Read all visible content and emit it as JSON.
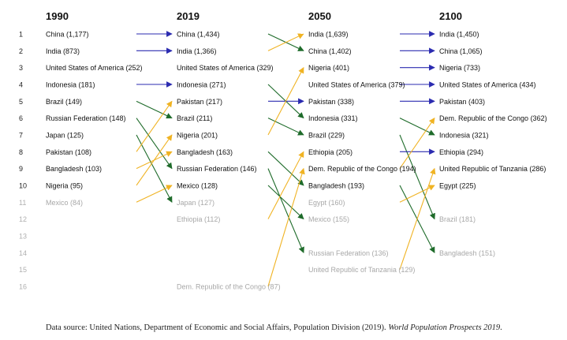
{
  "chart_data": {
    "type": "bump",
    "years": [
      "1990",
      "2019",
      "2050",
      "2100"
    ],
    "ranks": [
      "1",
      "2",
      "3",
      "4",
      "5",
      "6",
      "7",
      "8",
      "9",
      "10",
      "11",
      "12",
      "13",
      "14",
      "15",
      "16"
    ],
    "columns": [
      [
        {
          "rank": 1,
          "label": "China (1,177)",
          "top10": true
        },
        {
          "rank": 2,
          "label": "India (873)",
          "top10": true
        },
        {
          "rank": 3,
          "label": "United States of America (252)",
          "top10": true
        },
        {
          "rank": 4,
          "label": "Indonesia (181)",
          "top10": true
        },
        {
          "rank": 5,
          "label": "Brazil (149)",
          "top10": true
        },
        {
          "rank": 6,
          "label": "Russian Federation (148)",
          "top10": true
        },
        {
          "rank": 7,
          "label": "Japan (125)",
          "top10": true
        },
        {
          "rank": 8,
          "label": "Pakistan (108)",
          "top10": true
        },
        {
          "rank": 9,
          "label": "Bangladesh (103)",
          "top10": true
        },
        {
          "rank": 10,
          "label": "Nigeria (95)",
          "top10": true
        },
        {
          "rank": 11,
          "label": "Mexico (84)",
          "top10": false
        }
      ],
      [
        {
          "rank": 1,
          "label": "China (1,434)",
          "top10": true
        },
        {
          "rank": 2,
          "label": "India (1,366)",
          "top10": true
        },
        {
          "rank": 3,
          "label": "United States of America (329)",
          "top10": true
        },
        {
          "rank": 4,
          "label": "Indonesia (271)",
          "top10": true
        },
        {
          "rank": 5,
          "label": "Pakistan (217)",
          "top10": true
        },
        {
          "rank": 6,
          "label": "Brazil (211)",
          "top10": true
        },
        {
          "rank": 7,
          "label": "Nigeria (201)",
          "top10": true
        },
        {
          "rank": 8,
          "label": "Bangladesh (163)",
          "top10": true
        },
        {
          "rank": 9,
          "label": "Russian Federation (146)",
          "top10": true
        },
        {
          "rank": 10,
          "label": "Mexico (128)",
          "top10": true
        },
        {
          "rank": 11,
          "label": "Japan (127)",
          "top10": false
        },
        {
          "rank": 12,
          "label": "Ethiopia (112)",
          "top10": false
        },
        {
          "rank": 16,
          "label": "Dem. Republic of the Congo (87)",
          "top10": false
        }
      ],
      [
        {
          "rank": 1,
          "label": "India (1,639)",
          "top10": true
        },
        {
          "rank": 2,
          "label": "China (1,402)",
          "top10": true
        },
        {
          "rank": 3,
          "label": "Nigeria (401)",
          "top10": true
        },
        {
          "rank": 4,
          "label": "United States of America (379)",
          "top10": true
        },
        {
          "rank": 5,
          "label": "Pakistan (338)",
          "top10": true
        },
        {
          "rank": 6,
          "label": "Indonesia (331)",
          "top10": true
        },
        {
          "rank": 7,
          "label": "Brazil (229)",
          "top10": true
        },
        {
          "rank": 8,
          "label": "Ethiopia (205)",
          "top10": true
        },
        {
          "rank": 9,
          "label": "Dem. Republic of the Congo (194)",
          "top10": true
        },
        {
          "rank": 10,
          "label": "Bangladesh (193)",
          "top10": true
        },
        {
          "rank": 11,
          "label": "Egypt (160)",
          "top10": false
        },
        {
          "rank": 12,
          "label": "Mexico (155)",
          "top10": false
        },
        {
          "rank": 14,
          "label": "Russian Federation (136)",
          "top10": false
        },
        {
          "rank": 15,
          "label": "United Republic of Tanzania (129)",
          "top10": false
        }
      ],
      [
        {
          "rank": 1,
          "label": "India (1,450)",
          "top10": true
        },
        {
          "rank": 2,
          "label": "China (1,065)",
          "top10": true
        },
        {
          "rank": 3,
          "label": "Nigeria (733)",
          "top10": true
        },
        {
          "rank": 4,
          "label": "United States of America (434)",
          "top10": true
        },
        {
          "rank": 5,
          "label": "Pakistan (403)",
          "top10": true
        },
        {
          "rank": 6,
          "label": "Dem. Republic of the Congo (362)",
          "top10": true
        },
        {
          "rank": 7,
          "label": "Indonesia (321)",
          "top10": true
        },
        {
          "rank": 8,
          "label": "Ethiopia (294)",
          "top10": true
        },
        {
          "rank": 9,
          "label": "United Republic of Tanzania (286)",
          "top10": true
        },
        {
          "rank": 10,
          "label": "Egypt (225)",
          "top10": true
        },
        {
          "rank": 12,
          "label": "Brazil (181)",
          "top10": false
        },
        {
          "rank": 14,
          "label": "Bangladesh (151)",
          "top10": false
        }
      ]
    ],
    "arrows": [
      {
        "from_col": 0,
        "from_rank": 1,
        "to_rank": 1,
        "trend": "same"
      },
      {
        "from_col": 0,
        "from_rank": 2,
        "to_rank": 2,
        "trend": "same"
      },
      {
        "from_col": 0,
        "from_rank": 4,
        "to_rank": 4,
        "trend": "same"
      },
      {
        "from_col": 0,
        "from_rank": 5,
        "to_rank": 6,
        "trend": "down"
      },
      {
        "from_col": 0,
        "from_rank": 6,
        "to_rank": 9,
        "trend": "down"
      },
      {
        "from_col": 0,
        "from_rank": 7,
        "to_rank": 11,
        "trend": "down"
      },
      {
        "from_col": 0,
        "from_rank": 8,
        "to_rank": 5,
        "trend": "up"
      },
      {
        "from_col": 0,
        "from_rank": 9,
        "to_rank": 8,
        "trend": "up"
      },
      {
        "from_col": 0,
        "from_rank": 10,
        "to_rank": 7,
        "trend": "up"
      },
      {
        "from_col": 0,
        "from_rank": 11,
        "to_rank": 10,
        "trend": "up"
      },
      {
        "from_col": 1,
        "from_rank": 1,
        "to_rank": 2,
        "trend": "down"
      },
      {
        "from_col": 1,
        "from_rank": 2,
        "to_rank": 1,
        "trend": "up"
      },
      {
        "from_col": 1,
        "from_rank": 4,
        "to_rank": 6,
        "trend": "down"
      },
      {
        "from_col": 1,
        "from_rank": 5,
        "to_rank": 5,
        "trend": "same"
      },
      {
        "from_col": 1,
        "from_rank": 6,
        "to_rank": 7,
        "trend": "down"
      },
      {
        "from_col": 1,
        "from_rank": 7,
        "to_rank": 3,
        "trend": "up"
      },
      {
        "from_col": 1,
        "from_rank": 8,
        "to_rank": 10,
        "trend": "down"
      },
      {
        "from_col": 1,
        "from_rank": 9,
        "to_rank": 14,
        "trend": "down"
      },
      {
        "from_col": 1,
        "from_rank": 10,
        "to_rank": 12,
        "trend": "down"
      },
      {
        "from_col": 1,
        "from_rank": 12,
        "to_rank": 8,
        "trend": "up"
      },
      {
        "from_col": 1,
        "from_rank": 16,
        "to_rank": 9,
        "trend": "up"
      },
      {
        "from_col": 2,
        "from_rank": 1,
        "to_rank": 1,
        "trend": "same"
      },
      {
        "from_col": 2,
        "from_rank": 2,
        "to_rank": 2,
        "trend": "same"
      },
      {
        "from_col": 2,
        "from_rank": 3,
        "to_rank": 3,
        "trend": "same"
      },
      {
        "from_col": 2,
        "from_rank": 4,
        "to_rank": 4,
        "trend": "same"
      },
      {
        "from_col": 2,
        "from_rank": 5,
        "to_rank": 5,
        "trend": "same"
      },
      {
        "from_col": 2,
        "from_rank": 6,
        "to_rank": 7,
        "trend": "down"
      },
      {
        "from_col": 2,
        "from_rank": 7,
        "to_rank": 12,
        "trend": "down"
      },
      {
        "from_col": 2,
        "from_rank": 8,
        "to_rank": 8,
        "trend": "same"
      },
      {
        "from_col": 2,
        "from_rank": 9,
        "to_rank": 6,
        "trend": "up"
      },
      {
        "from_col": 2,
        "from_rank": 10,
        "to_rank": 14,
        "trend": "down"
      },
      {
        "from_col": 2,
        "from_rank": 11,
        "to_rank": 10,
        "trend": "up"
      },
      {
        "from_col": 2,
        "from_rank": 15,
        "to_rank": 9,
        "trend": "up"
      }
    ],
    "colors": {
      "same": "#2b2bb0",
      "up": "#f0b323",
      "down": "#1e6b2a"
    }
  },
  "source": {
    "prefix": "Data source: United Nations, Department of Economic and Social Affairs, Population Division (2019). ",
    "title": "World Population Prospects 2019",
    "suffix": "."
  }
}
